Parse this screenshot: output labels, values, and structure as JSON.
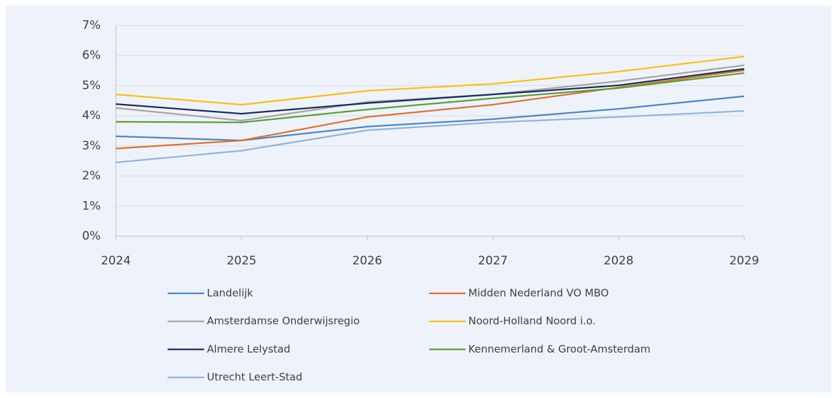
{
  "chart_data": {
    "type": "line",
    "categories": [
      "2024",
      "2025",
      "2026",
      "2027",
      "2028",
      "2029"
    ],
    "series": [
      {
        "name": "Landelijk",
        "color": "#4a86c5",
        "values": [
          3.32,
          3.18,
          3.64,
          3.89,
          4.23,
          4.65
        ]
      },
      {
        "name": "Midden Nederland VO MBO",
        "color": "#e0702a",
        "values": [
          2.91,
          3.18,
          3.96,
          4.37,
          4.94,
          5.51
        ]
      },
      {
        "name": "Amsterdamse Onderwijsregio",
        "color": "#a5a5a5",
        "values": [
          4.26,
          3.84,
          4.46,
          4.71,
          5.15,
          5.68
        ]
      },
      {
        "name": "Noord-Holland Noord i.o.",
        "color": "#fbbf14",
        "values": [
          4.71,
          4.37,
          4.83,
          5.06,
          5.47,
          5.97
        ]
      },
      {
        "name": "Almere Lelystad",
        "color": "#1b2a5c",
        "values": [
          4.39,
          4.07,
          4.42,
          4.71,
          5.01,
          5.56
        ]
      },
      {
        "name": "Kennemerland & Groot-Amsterdam",
        "color": "#58a033",
        "values": [
          3.8,
          3.78,
          4.21,
          4.58,
          4.92,
          5.42
        ]
      },
      {
        "name": "Utrecht Leert-Stad",
        "color": "#8fb4de",
        "values": [
          2.45,
          2.84,
          3.52,
          3.78,
          3.96,
          4.16
        ]
      }
    ],
    "ylim": [
      0,
      7
    ],
    "yticks": [
      {
        "value": 0,
        "label": "0%"
      },
      {
        "value": 1,
        "label": "1%"
      },
      {
        "value": 2,
        "label": "2%"
      },
      {
        "value": 3,
        "label": "3%"
      },
      {
        "value": 4,
        "label": "4%"
      },
      {
        "value": 5,
        "label": "5%"
      },
      {
        "value": 6,
        "label": "6%"
      },
      {
        "value": 7,
        "label": "7%"
      }
    ],
    "grid": true,
    "legend": "bottom"
  }
}
